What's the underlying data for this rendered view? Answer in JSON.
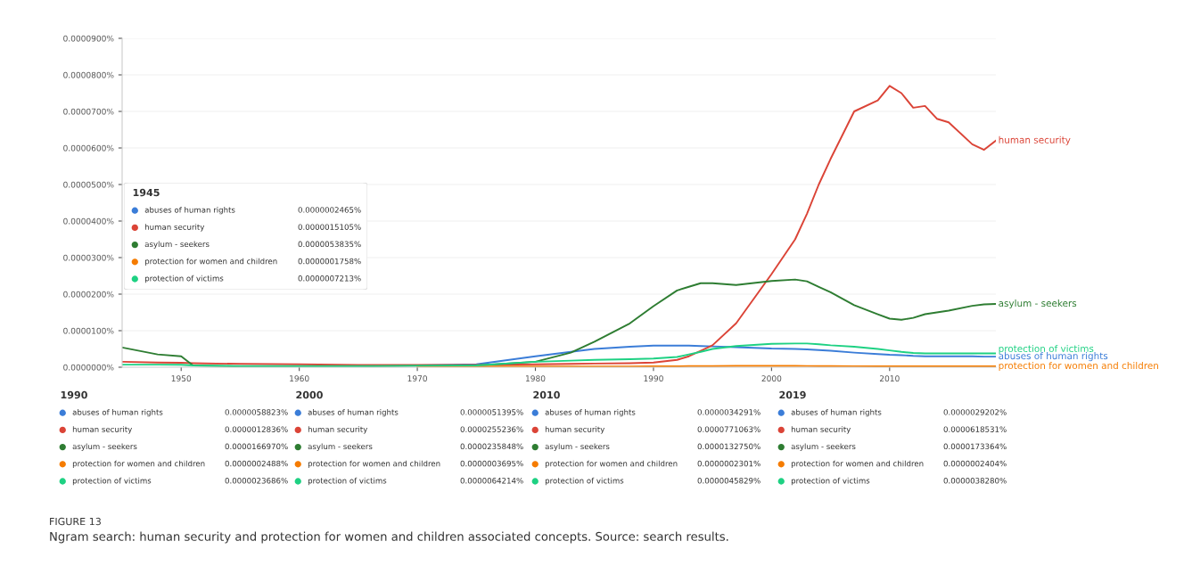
{
  "chart_data": [
    {
      "type": "line",
      "x": [
        1945,
        1948,
        1950,
        1951,
        1955,
        1960,
        1965,
        1970,
        1975,
        1980,
        1983,
        1985,
        1988,
        1990,
        1992,
        1993,
        1994,
        1995,
        1997,
        2000,
        2002,
        2003,
        2004,
        2005,
        2007,
        2009,
        2010,
        2011,
        2012,
        2013,
        2014,
        2015,
        2017,
        2018,
        2019
      ],
      "series": [
        {
          "name": "abuses of human rights",
          "color": "#3b7dd8",
          "values": [
            null,
            null,
            null,
            null,
            null,
            null,
            null,
            5e-07,
            8e-07,
            3e-06,
            4.2e-06,
            5e-06,
            5.6e-06,
            5.9e-06,
            5.9e-06,
            5.9e-06,
            5.8e-06,
            5.7e-06,
            5.5e-06,
            5.1e-06,
            5e-06,
            4.9e-06,
            4.7e-06,
            4.5e-06,
            4e-06,
            3.6e-06,
            3.4e-06,
            3.3e-06,
            3.1e-06,
            3e-06,
            3e-06,
            3e-06,
            3e-06,
            2.9e-06,
            2.9e-06
          ]
        },
        {
          "name": "human security",
          "color": "#db4437",
          "values": [
            1.5e-06,
            1.3e-06,
            1.2e-06,
            1.1e-06,
            9e-07,
            8e-07,
            6e-07,
            6e-07,
            6e-07,
            8e-07,
            9e-07,
            1e-06,
            1.1e-06,
            1.3e-06,
            2e-06,
            3e-06,
            4.5e-06,
            6e-06,
            1.2e-05,
            2.55e-05,
            3.5e-05,
            4.2e-05,
            5e-05,
            5.7e-05,
            7e-05,
            7.3e-05,
            7.7e-05,
            7.5e-05,
            7.1e-05,
            7.15e-05,
            6.8e-05,
            6.7e-05,
            6.1e-05,
            5.95e-05,
            6.2e-05
          ]
        },
        {
          "name": "asylum - seekers",
          "color": "#2e7d32",
          "values": [
            5.4e-06,
            3.5e-06,
            3e-06,
            5e-07,
            2e-07,
            2e-07,
            2e-07,
            4e-07,
            5e-07,
            1.5e-06,
            4e-06,
            7e-06,
            1.2e-05,
            1.67e-05,
            2.1e-05,
            2.2e-05,
            2.3e-05,
            2.3e-05,
            2.25e-05,
            2.36e-05,
            2.4e-05,
            2.35e-05,
            2.2e-05,
            2.05e-05,
            1.7e-05,
            1.45e-05,
            1.33e-05,
            1.3e-05,
            1.35e-05,
            1.45e-05,
            1.5e-05,
            1.55e-05,
            1.68e-05,
            1.72e-05,
            1.73e-05
          ]
        },
        {
          "name": "protection for women and children",
          "color": "#f57c00",
          "values": [
            null,
            null,
            null,
            null,
            null,
            null,
            null,
            2e-07,
            2e-07,
            2e-07,
            2e-07,
            2e-07,
            2e-07,
            2.5e-07,
            2.5e-07,
            3e-07,
            3e-07,
            3e-07,
            3.5e-07,
            3.7e-07,
            3.6e-07,
            3.4e-07,
            3.2e-07,
            3e-07,
            2.7e-07,
            2.4e-07,
            2.3e-07,
            2.3e-07,
            2.3e-07,
            2.3e-07,
            2.4e-07,
            2.4e-07,
            2.4e-07,
            2.4e-07,
            2.4e-07
          ]
        },
        {
          "name": "protection of victims",
          "color": "#1ed183",
          "values": [
            7e-07,
            7e-07,
            6.5e-07,
            5e-07,
            3e-07,
            3e-07,
            3e-07,
            4e-07,
            5e-07,
            1.5e-06,
            1.8e-06,
            2e-06,
            2.2e-06,
            2.4e-06,
            2.8e-06,
            3.5e-06,
            4.2e-06,
            5e-06,
            5.8e-06,
            6.4e-06,
            6.5e-06,
            6.5e-06,
            6.3e-06,
            6e-06,
            5.6e-06,
            5e-06,
            4.6e-06,
            4.2e-06,
            3.9e-06,
            3.8e-06,
            3.8e-06,
            3.8e-06,
            3.8e-06,
            3.8e-06,
            3.8e-06
          ]
        }
      ],
      "xlim": [
        1945,
        2019
      ],
      "xticks": [
        1950,
        1960,
        1970,
        1980,
        1990,
        2000,
        2010
      ],
      "ylim": [
        0,
        9e-05
      ],
      "yticks": [
        {
          "value": 0,
          "label": "0.0000000%"
        },
        {
          "value": 1e-05,
          "label": "0.0000100%"
        },
        {
          "value": 2e-05,
          "label": "0.0000200%"
        },
        {
          "value": 3e-05,
          "label": "0.0000300%"
        },
        {
          "value": 4e-05,
          "label": "0.0000400%"
        },
        {
          "value": 5e-05,
          "label": "0.0000500%"
        },
        {
          "value": 6e-05,
          "label": "0.0000600%"
        },
        {
          "value": 7e-05,
          "label": "0.0000700%"
        },
        {
          "value": 8e-05,
          "label": "0.0000800%"
        },
        {
          "value": 9e-05,
          "label": "0.0000900%"
        }
      ],
      "grid": "y",
      "annotations": [
        "FIGURE 13",
        "Ngram search: human security and protection for women and children associated concepts. Source: search results."
      ]
    },
    {
      "type": "other",
      "title": "1945",
      "categories": [
        "abuses of human rights",
        "human security",
        "asylum - seekers",
        "protection for women and children",
        "protection of victims"
      ],
      "colors": [
        "#3b7dd8",
        "#db4437",
        "#2e7d32",
        "#f57c00",
        "#1ed183"
      ],
      "value_labels": [
        "0.0000002465%",
        "0.0000015105%",
        "0.0000053835%",
        "0.0000001758%",
        "0.0000007213%"
      ]
    },
    {
      "type": "other",
      "title": "1990",
      "categories": [
        "abuses of human rights",
        "human security",
        "asylum - seekers",
        "protection for women and children",
        "protection of victims"
      ],
      "colors": [
        "#3b7dd8",
        "#db4437",
        "#2e7d32",
        "#f57c00",
        "#1ed183"
      ],
      "value_labels": [
        "0.0000058823%",
        "0.0000012836%",
        "0.0000166970%",
        "0.0000002488%",
        "0.0000023686%"
      ]
    },
    {
      "type": "other",
      "title": "2000",
      "categories": [
        "abuses of human rights",
        "human security",
        "asylum - seekers",
        "protection for women and children",
        "protection of victims"
      ],
      "colors": [
        "#3b7dd8",
        "#db4437",
        "#2e7d32",
        "#f57c00",
        "#1ed183"
      ],
      "value_labels": [
        "0.0000051395%",
        "0.0000255236%",
        "0.0000235848%",
        "0.0000003695%",
        "0.0000064214%"
      ]
    },
    {
      "type": "other",
      "title": "2010",
      "categories": [
        "abuses of human rights",
        "human security",
        "asylum - seekers",
        "protection for women and children",
        "protection of victims"
      ],
      "colors": [
        "#3b7dd8",
        "#db4437",
        "#2e7d32",
        "#f57c00",
        "#1ed183"
      ],
      "value_labels": [
        "0.0000034291%",
        "0.0000771063%",
        "0.0000132750%",
        "0.0000002301%",
        "0.0000045829%"
      ]
    },
    {
      "type": "other",
      "title": "2019",
      "categories": [
        "abuses of human rights",
        "human security",
        "asylum - seekers",
        "protection for women and children",
        "protection of victims"
      ],
      "colors": [
        "#3b7dd8",
        "#db4437",
        "#2e7d32",
        "#f57c00",
        "#1ed183"
      ],
      "value_labels": [
        "0.0000029202%",
        "0.0000618531%",
        "0.0000173364%",
        "0.0000002404%",
        "0.0000038280%"
      ]
    }
  ]
}
